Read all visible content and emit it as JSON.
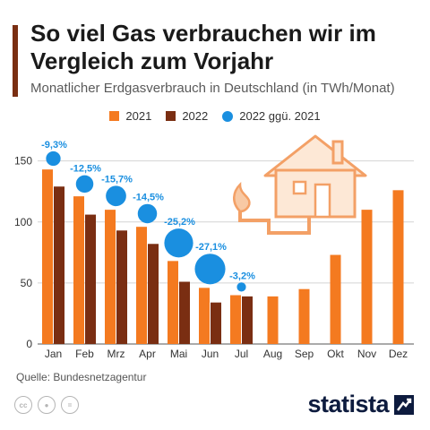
{
  "header": {
    "title": "So viel Gas verbrauchen wir im Vergleich zum Vorjahr",
    "subtitle": "Monatlicher Erdgasverbrauch in Deutschland (in TWh/Monat)",
    "accent_color": "#7a2e12"
  },
  "legend": {
    "items": [
      {
        "label": "2021",
        "color": "#f47a20",
        "shape": "square"
      },
      {
        "label": "2022",
        "color": "#7a2e12",
        "shape": "square"
      },
      {
        "label": "2022 ggü. 2021",
        "color": "#1a8fe0",
        "shape": "circle"
      }
    ]
  },
  "chart_data": {
    "type": "bar",
    "categories": [
      "Jan",
      "Feb",
      "Mrz",
      "Apr",
      "Mai",
      "Jun",
      "Jul",
      "Aug",
      "Sep",
      "Okt",
      "Nov",
      "Dez"
    ],
    "series": [
      {
        "name": "2021",
        "color": "#f47a20",
        "values": [
          143,
          121,
          110,
          96,
          68,
          46,
          40,
          39,
          45,
          73,
          110,
          126
        ]
      },
      {
        "name": "2022",
        "color": "#7a2e12",
        "values": [
          129,
          106,
          93,
          82,
          51,
          34,
          39,
          null,
          null,
          null,
          null,
          null
        ]
      }
    ],
    "change_series": {
      "name": "2022 ggü. 2021",
      "color": "#1a8fe0",
      "values": [
        -9.3,
        -12.5,
        -15.7,
        -14.5,
        -25.2,
        -27.1,
        -3.2
      ],
      "labels": [
        "-9,3%",
        "-12,5%",
        "-15,7%",
        "-14,5%",
        "-25,2%",
        "-27,1%",
        "-3,2%"
      ]
    },
    "yticks": [
      0,
      50,
      100,
      150
    ],
    "ylim": [
      0,
      160
    ],
    "grid": true,
    "legend_position": "top-center",
    "illustration": "house-with-gas-flame-icon"
  },
  "footer": {
    "source": "Quelle: Bundesnetzagentur",
    "brand": "statista",
    "license_icons": [
      "cc-icon",
      "person-icon",
      "equals-icon"
    ]
  }
}
